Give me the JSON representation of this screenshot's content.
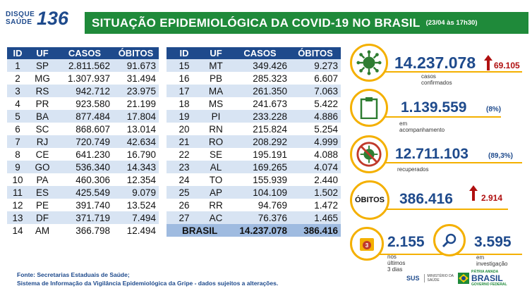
{
  "logo": {
    "line1": "DISQUE",
    "line2": "SAÚDE",
    "number": "136"
  },
  "header": {
    "title": "SITUAÇÃO EPIDEMIOLÓGICA DA COVID-19 NO BRASIL",
    "date": "(23/04 às 17h30)"
  },
  "table": {
    "columns": [
      "ID",
      "UF",
      "CASOS",
      "ÓBITOS"
    ],
    "left_rows": [
      [
        "1",
        "SP",
        "2.811.562",
        "91.673"
      ],
      [
        "2",
        "MG",
        "1.307.937",
        "31.494"
      ],
      [
        "3",
        "RS",
        "942.712",
        "23.975"
      ],
      [
        "4",
        "PR",
        "923.580",
        "21.199"
      ],
      [
        "5",
        "BA",
        "877.484",
        "17.804"
      ],
      [
        "6",
        "SC",
        "868.607",
        "13.014"
      ],
      [
        "7",
        "RJ",
        "720.749",
        "42.634"
      ],
      [
        "8",
        "CE",
        "641.230",
        "16.790"
      ],
      [
        "9",
        "GO",
        "536.340",
        "14.343"
      ],
      [
        "10",
        "PA",
        "460.306",
        "12.354"
      ],
      [
        "11",
        "ES",
        "425.549",
        "9.079"
      ],
      [
        "12",
        "PE",
        "391.740",
        "13.524"
      ],
      [
        "13",
        "DF",
        "371.719",
        "7.494"
      ],
      [
        "14",
        "AM",
        "366.798",
        "12.494"
      ]
    ],
    "right_rows": [
      [
        "15",
        "MT",
        "349.426",
        "9.273"
      ],
      [
        "16",
        "PB",
        "285.323",
        "6.607"
      ],
      [
        "17",
        "MA",
        "261.350",
        "7.063"
      ],
      [
        "18",
        "MS",
        "241.673",
        "5.422"
      ],
      [
        "19",
        "PI",
        "233.228",
        "4.886"
      ],
      [
        "20",
        "RN",
        "215.824",
        "5.254"
      ],
      [
        "21",
        "RO",
        "208.292",
        "4.999"
      ],
      [
        "22",
        "SE",
        "195.191",
        "4.088"
      ],
      [
        "23",
        "AL",
        "169.265",
        "4.074"
      ],
      [
        "24",
        "TO",
        "155.939",
        "2.440"
      ],
      [
        "25",
        "AP",
        "104.109",
        "1.502"
      ],
      [
        "26",
        "RR",
        "94.769",
        "1.472"
      ],
      [
        "27",
        "AC",
        "76.376",
        "1.465"
      ]
    ],
    "total": {
      "label": "BRASIL",
      "casos": "14.237.078",
      "obitos": "386.416"
    }
  },
  "stats": {
    "confirmed": {
      "icon": "virus-icon",
      "value": "14.237.078",
      "label": "casos confirmados",
      "delta": "69.105"
    },
    "monitoring": {
      "icon": "clipboard-icon",
      "value": "1.139.559",
      "pct": "(8%)",
      "label": "em acompanhamento"
    },
    "recovered": {
      "icon": "virus-crossed-icon",
      "value": "12.711.103",
      "pct": "(89,3%)",
      "label": "recuperados"
    },
    "deaths": {
      "label": "ÓBITOS",
      "value": "386.416",
      "delta": "2.914"
    },
    "last3days": {
      "icon": "calendar-icon",
      "badge": "3",
      "value": "2.155",
      "label": "nos últimos 3 dias"
    },
    "investigation": {
      "icon": "magnifier-icon",
      "value": "3.595",
      "label": "em investigação"
    }
  },
  "footer": {
    "line1": "Fonte: Secretarias Estaduais de Saúde;",
    "line2": "Sistema de Informação da Vigilância Epidemiológica da Gripe - dados sujeitos a alterações.",
    "sus": "SUS",
    "ministerio_line1": "MINISTÉRIO DA",
    "ministerio_line2": "SAÚDE",
    "gov_line1": "PÁTRIA AMADA",
    "gov_line2": "BRASIL",
    "gov_line3": "GOVERNO FEDERAL"
  },
  "colors": {
    "brand_blue": "#1e4a8c",
    "title_green": "#1f8a3a",
    "accent_yellow": "#f4b000",
    "alert_red": "#b01010",
    "row_stripe": "#d8e4f3"
  }
}
